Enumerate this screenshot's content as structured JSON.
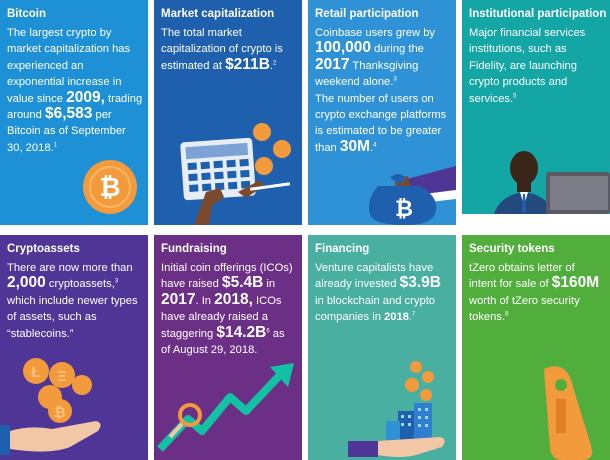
{
  "colors": {
    "bitcoin_bg": "#1E90D6",
    "market_cap_bg": "#1E5FAE",
    "retail_bg": "#2F92D6",
    "institutional_bg": "#13A6A4",
    "cryptoassets_bg": "#4F3596",
    "fundraising_bg": "#6B2F86",
    "financing_bg": "#49AFA0",
    "security_tokens_bg": "#52AE3C",
    "coin_orange": "#F29A3C",
    "tag_blue": "#9BD9F5"
  },
  "tiles": {
    "bitcoin": {
      "title": "Bitcoin",
      "t1": "The largest crypto by market capitalization has experienced an exponential increase in value since ",
      "n1": "2009,",
      "t2": " trading around ",
      "n2": "$6,583",
      "t3": " per Bitcoin as of September 30, 2018.",
      "sup": "1",
      "icon": "bitcoin-coin-icon"
    },
    "market_cap": {
      "title": "Market capitalization",
      "t1": "The total market capitalization of crypto is estimated at ",
      "n1": "$211B",
      "t2": ".",
      "sup": "2",
      "icon": "calculator-icon"
    },
    "retail": {
      "title": "Retail participation",
      "t1": "Coinbase users grew by ",
      "n1": "100,000",
      "t2": " during the ",
      "n2": "2017",
      "t3": " Thanksgiving weekend alone.",
      "sup1": "3",
      "t4": "The number of users on crypto exchange platforms is estimated to be greater than ",
      "n3": "30M",
      "t5": ".",
      "sup2": "4",
      "icon": "bitcoin-money-bag-icon"
    },
    "institutional": {
      "title": "Institutional participation",
      "t1": "Major financial services institutions, such as Fidelity, are launching crypto products and services.",
      "sup": "5",
      "icon": "businessman-laptop-icon"
    },
    "cryptoassets": {
      "title": "Cryptoassets",
      "t1": "There are now more than ",
      "n1": "2,000",
      "t2": " cryptoassets,",
      "sup": "3",
      "t3": " which include newer types of assets, such as “stablecoins.”",
      "icon": "hand-coins-icon"
    },
    "fundraising": {
      "title": "Fundraising",
      "t1": "Initial coin offerings (ICOs) have raised ",
      "n1": "$5.4B",
      "t2": " in ",
      "n2": "2017",
      "t3": ". In ",
      "n3": "2018,",
      "t4": " ICOs have already raised a staggering ",
      "n4": "$14.2B",
      "sup": "6",
      "t5": " as of August 29, 2018.",
      "icon": "growth-arrow-icon"
    },
    "financing": {
      "title": "Financing",
      "t1": "Venture capitalists have already invested ",
      "n1": "$3.9B",
      "t2": " in blockchain and crypto companies in ",
      "n2": "2018",
      "t3": ".",
      "sup": "7",
      "icon": "hand-building-coins-icon"
    },
    "security_tokens": {
      "title": "Security tokens",
      "t1": "tZero obtains letter of intent for sale of ",
      "n1": "$160M",
      "t2": " worth of tZero security tokens.",
      "sup": "8",
      "icon": "token-tag-icon"
    }
  }
}
